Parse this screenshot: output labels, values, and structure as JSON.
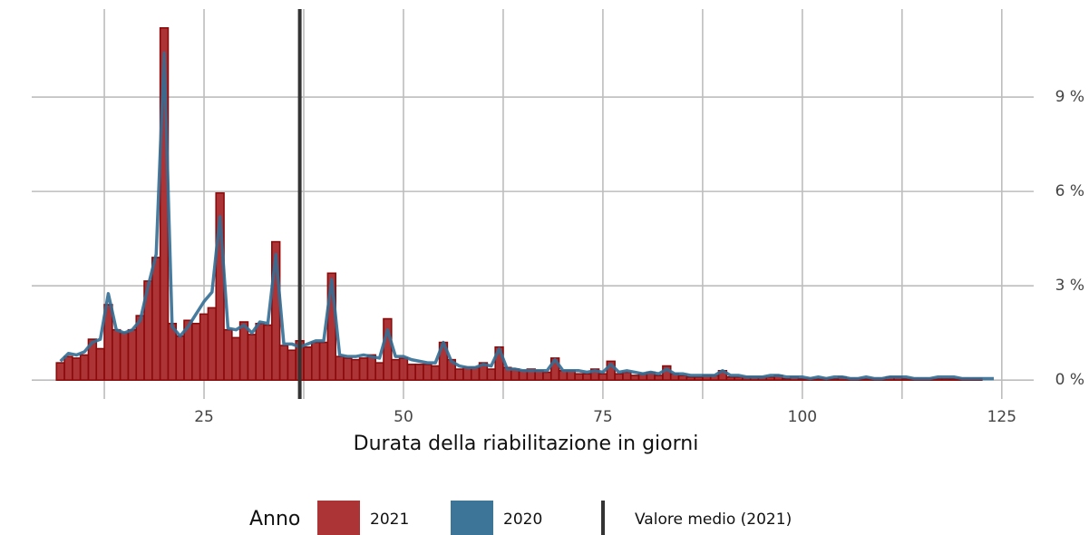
{
  "chart_data": {
    "type": "bar",
    "x_label": "Durata della riabilitazione in giorni",
    "legend_title": "Anno",
    "x": [
      7,
      8,
      9,
      10,
      11,
      12,
      13,
      14,
      15,
      16,
      17,
      18,
      19,
      20,
      21,
      22,
      23,
      24,
      25,
      26,
      27,
      28,
      29,
      30,
      31,
      32,
      33,
      34,
      35,
      36,
      37,
      38,
      39,
      40,
      41,
      42,
      43,
      44,
      45,
      46,
      47,
      48,
      49,
      50,
      51,
      52,
      53,
      54,
      55,
      56,
      57,
      58,
      59,
      60,
      61,
      62,
      63,
      64,
      65,
      66,
      67,
      68,
      69,
      70,
      71,
      72,
      73,
      74,
      75,
      76,
      77,
      78,
      79,
      80,
      81,
      82,
      83,
      84,
      85,
      86,
      87,
      88,
      89,
      90,
      91,
      92,
      93,
      94,
      95,
      96,
      97,
      98,
      99,
      100,
      101,
      102,
      103,
      104,
      105,
      106,
      107,
      108,
      109,
      110,
      111,
      112,
      113,
      114,
      115,
      116,
      117,
      118,
      119,
      120,
      121,
      122,
      123,
      124
    ],
    "series": [
      {
        "name": "2021",
        "type": "bar",
        "color": "#a8282b",
        "edge_color": "#8b0a0a",
        "values": [
          0.55,
          0.75,
          0.7,
          0.8,
          1.3,
          1.0,
          2.4,
          1.6,
          1.5,
          1.6,
          2.05,
          3.15,
          3.9,
          11.2,
          1.8,
          1.4,
          1.9,
          1.8,
          2.1,
          2.3,
          5.95,
          1.6,
          1.35,
          1.85,
          1.45,
          1.8,
          1.75,
          4.4,
          1.1,
          0.95,
          1.25,
          1.05,
          1.2,
          1.2,
          3.4,
          0.75,
          0.7,
          0.65,
          0.7,
          0.8,
          0.55,
          1.95,
          0.65,
          0.7,
          0.5,
          0.5,
          0.5,
          0.45,
          1.2,
          0.65,
          0.35,
          0.4,
          0.4,
          0.55,
          0.35,
          1.05,
          0.4,
          0.35,
          0.3,
          0.35,
          0.3,
          0.25,
          0.7,
          0.3,
          0.3,
          0.2,
          0.2,
          0.35,
          0.2,
          0.6,
          0.2,
          0.25,
          0.15,
          0.2,
          0.25,
          0.15,
          0.45,
          0.2,
          0.15,
          0.1,
          0.1,
          0.15,
          0.15,
          0.3,
          0.1,
          0.1,
          0.1,
          0.1,
          0.1,
          0.1,
          0.15,
          0.05,
          0.1,
          0.05,
          0.05,
          0.05,
          0.05,
          0.05,
          0.1,
          0.05,
          0.05,
          0.05,
          0.05,
          0.05,
          0.1,
          0.1,
          0.05,
          0.05,
          0.05,
          0.05,
          0.05,
          0.05,
          0.05,
          0.05,
          0.05,
          0.05,
          null,
          null
        ]
      },
      {
        "name": "2020",
        "type": "line",
        "color": "#336e94",
        "values": [
          0.6,
          0.85,
          0.8,
          0.9,
          1.2,
          1.3,
          2.75,
          1.6,
          1.5,
          1.6,
          1.9,
          3.0,
          4.0,
          10.4,
          1.7,
          1.4,
          1.7,
          2.1,
          2.5,
          2.8,
          5.2,
          1.65,
          1.6,
          1.75,
          1.5,
          1.85,
          1.8,
          4.0,
          1.15,
          1.15,
          1.05,
          1.15,
          1.25,
          1.25,
          3.2,
          0.8,
          0.75,
          0.75,
          0.8,
          0.75,
          0.7,
          1.6,
          0.75,
          0.75,
          0.65,
          0.6,
          0.55,
          0.55,
          1.2,
          0.6,
          0.45,
          0.4,
          0.4,
          0.5,
          0.45,
          1.0,
          0.35,
          0.35,
          0.3,
          0.3,
          0.3,
          0.3,
          0.65,
          0.3,
          0.3,
          0.3,
          0.25,
          0.3,
          0.25,
          0.5,
          0.25,
          0.3,
          0.25,
          0.2,
          0.25,
          0.2,
          0.35,
          0.2,
          0.2,
          0.15,
          0.15,
          0.15,
          0.15,
          0.3,
          0.15,
          0.15,
          0.1,
          0.1,
          0.1,
          0.15,
          0.15,
          0.1,
          0.1,
          0.1,
          0.05,
          0.1,
          0.05,
          0.1,
          0.1,
          0.05,
          0.05,
          0.1,
          0.05,
          0.05,
          0.1,
          0.1,
          0.1,
          0.05,
          0.05,
          0.05,
          0.1,
          0.1,
          0.1,
          0.05,
          0.05,
          0.05,
          0.05,
          0.05
        ]
      }
    ],
    "mean_line": {
      "value": 37,
      "label": "Valore medio (2021)",
      "color": "#333333"
    },
    "xlim": [
      3.4,
      129
    ],
    "xticks": [
      25,
      50,
      75,
      100,
      125
    ],
    "xminorticks": [
      12.5,
      37.5,
      62.5,
      87.5,
      112.5
    ],
    "ylim": [
      -0.6,
      11.8
    ],
    "yticks": [
      {
        "value": 0,
        "label": "0 %"
      },
      {
        "value": 3,
        "label": "3 %"
      },
      {
        "value": 6,
        "label": "6 %"
      },
      {
        "value": 9,
        "label": "9 %"
      }
    ],
    "grid": true,
    "y_axis_side": "right",
    "legend_position": "bottom"
  }
}
